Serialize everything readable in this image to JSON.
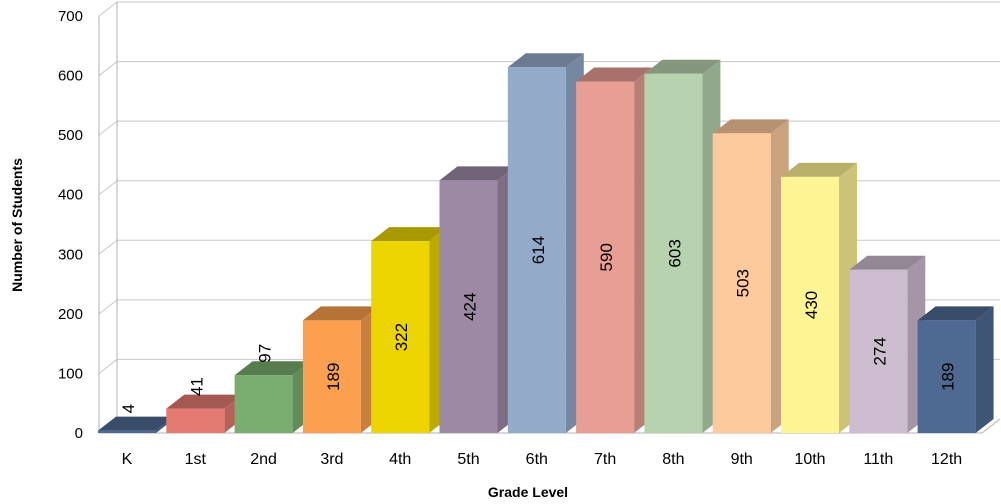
{
  "chart_data": {
    "type": "bar",
    "title": "",
    "xlabel": "Grade Level",
    "ylabel": "Number of Students",
    "ylim": [
      0,
      700
    ],
    "yticks": [
      0,
      100,
      200,
      300,
      400,
      500,
      600,
      700
    ],
    "categories": [
      "K",
      "1st",
      "2nd",
      "3rd",
      "4th",
      "5th",
      "6th",
      "7th",
      "8th",
      "9th",
      "10th",
      "11th",
      "12th"
    ],
    "values": [
      4,
      41,
      97,
      189,
      322,
      424,
      614,
      590,
      603,
      503,
      430,
      274,
      189
    ],
    "colors": [
      "#4F6A92",
      "#E47A72",
      "#79AE6E",
      "#FBA04E",
      "#EBD400",
      "#9C8AA4",
      "#94AAC9",
      "#E79F95",
      "#B7D2AE",
      "#FDCA9E",
      "#FFF493",
      "#CDBCCF",
      "#4F6A92"
    ],
    "grid": true,
    "legend": "none",
    "style": "3d-column"
  }
}
